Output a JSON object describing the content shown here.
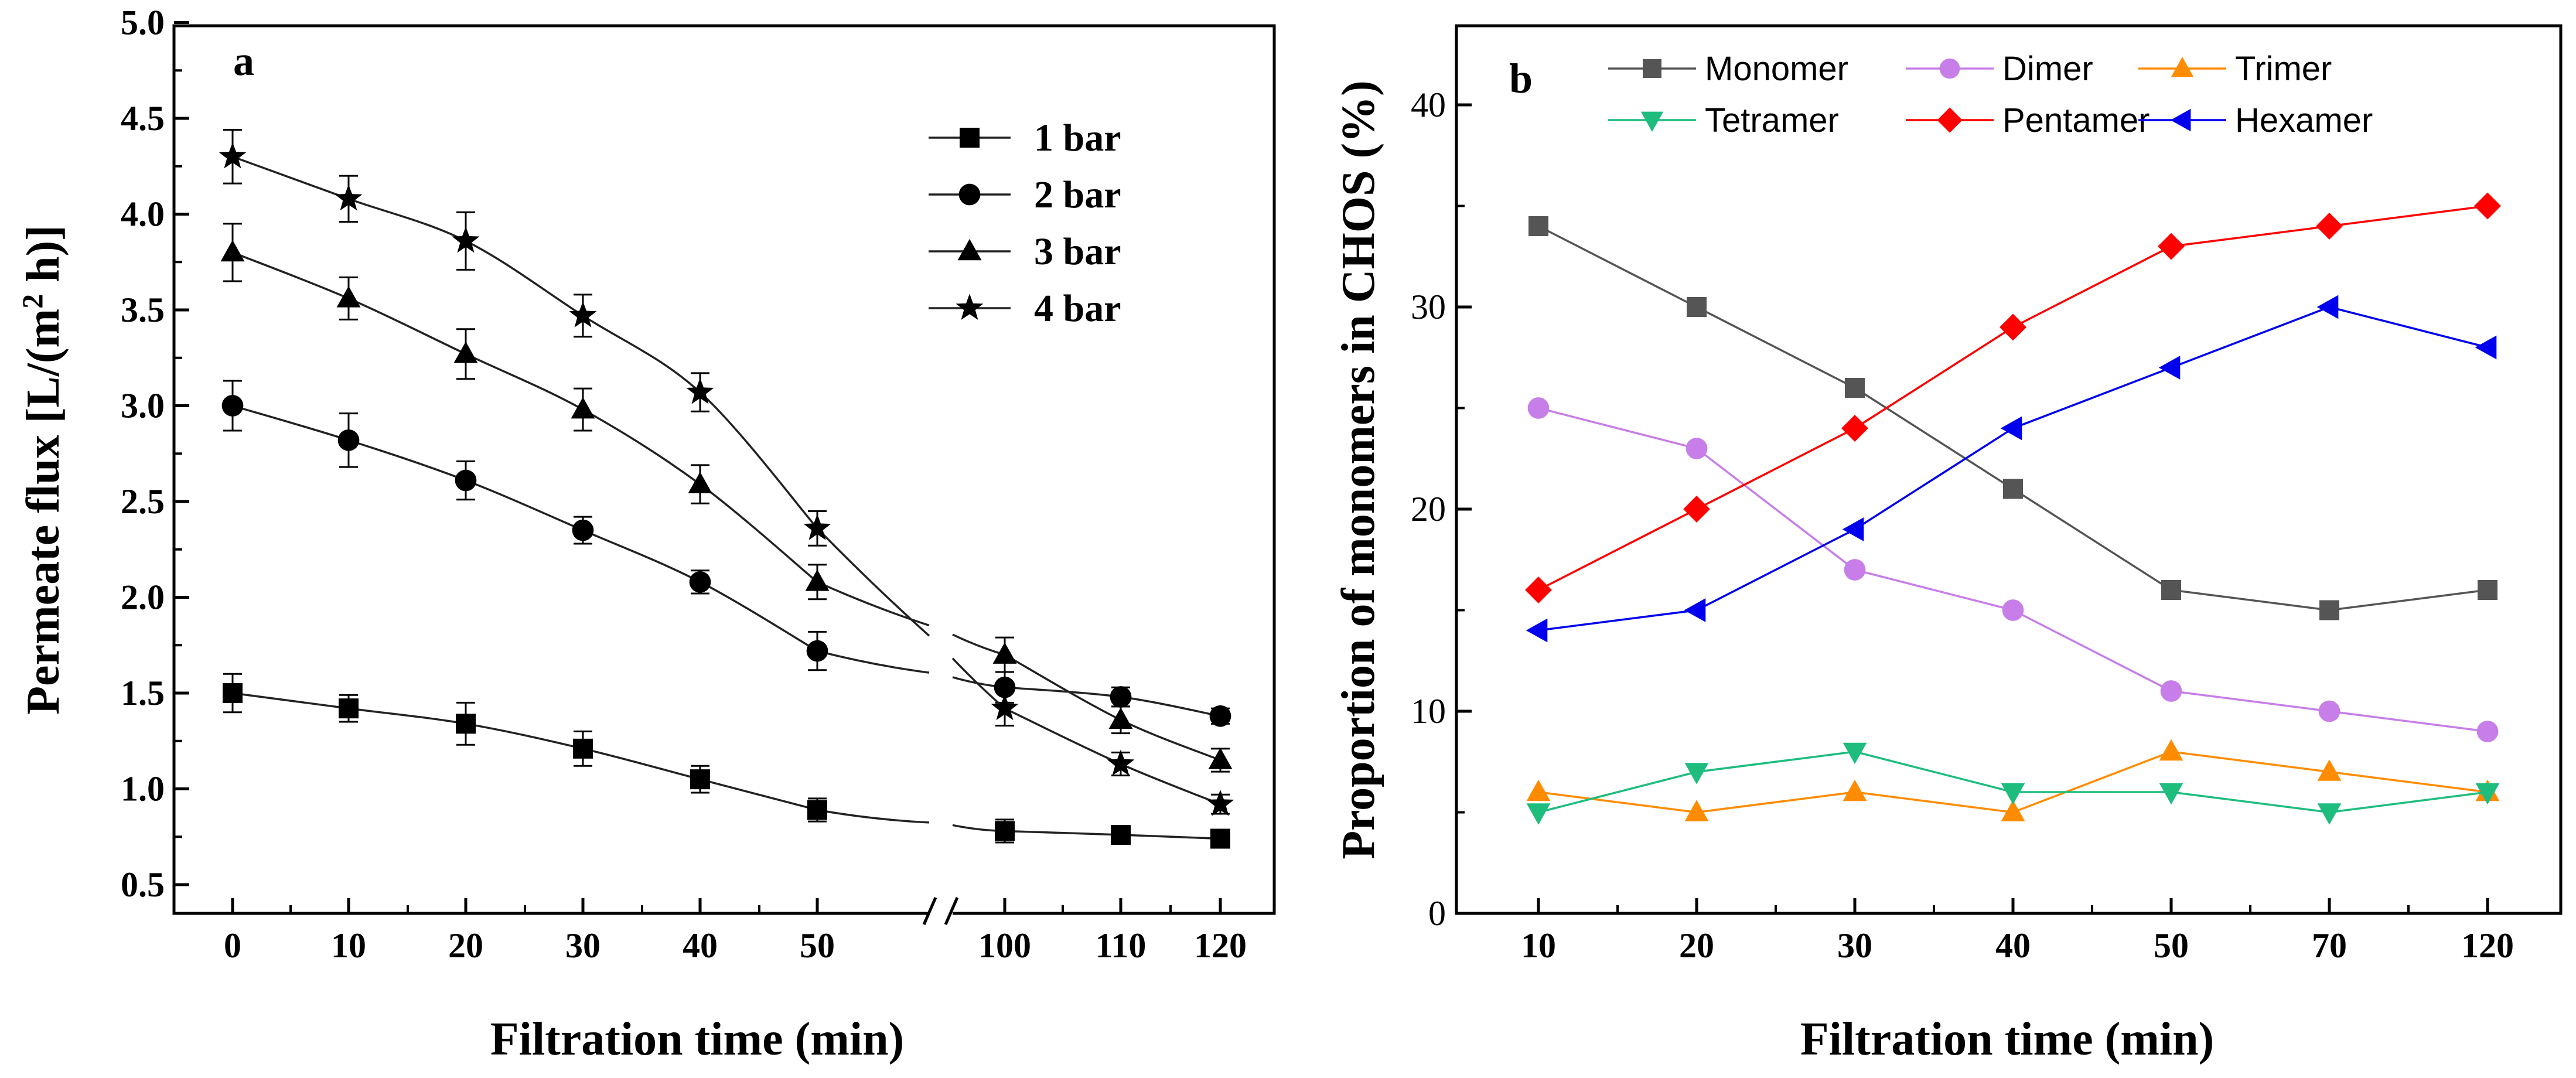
{
  "chart_data": [
    {
      "panel": "a",
      "type": "line",
      "xlabel": "Filtration time (min)",
      "ylabel_main": "Permeate flux [L/(m",
      "ylabel_sup": "2",
      "ylabel_end": " h)]",
      "ylim": [
        0.5,
        5.0
      ],
      "yticks": [
        "0.5",
        "1.0",
        "1.5",
        "2.0",
        "2.5",
        "3.0",
        "3.5",
        "4.0",
        "4.5",
        "5.0"
      ],
      "x": [
        "0",
        "10",
        "20",
        "30",
        "40",
        "50",
        "100",
        "110",
        "120"
      ],
      "axis_break": "between 50 and 100",
      "series": [
        {
          "name": "1 bar",
          "marker": "square",
          "values": [
            1.5,
            1.42,
            1.34,
            1.21,
            1.05,
            0.89,
            0.78,
            0.76,
            0.74
          ],
          "errors": [
            0.1,
            0.07,
            0.11,
            0.09,
            0.07,
            0.06,
            0.06,
            0.03,
            0.03
          ]
        },
        {
          "name": "2 bar",
          "marker": "circle",
          "values": [
            3.0,
            2.82,
            2.61,
            2.35,
            2.08,
            1.72,
            1.53,
            1.48,
            1.38
          ],
          "errors": [
            0.13,
            0.14,
            0.1,
            0.07,
            0.06,
            0.1,
            0.08,
            0.05,
            0.04
          ]
        },
        {
          "name": "3 bar",
          "marker": "triangle",
          "values": [
            3.8,
            3.56,
            3.27,
            2.98,
            2.59,
            2.08,
            1.7,
            1.36,
            1.15
          ],
          "errors": [
            0.15,
            0.11,
            0.13,
            0.11,
            0.1,
            0.09,
            0.09,
            0.07,
            0.06
          ]
        },
        {
          "name": "4 bar",
          "marker": "star",
          "values": [
            4.3,
            4.08,
            3.86,
            3.47,
            3.07,
            2.36,
            1.42,
            1.13,
            0.92
          ],
          "errors": [
            0.14,
            0.12,
            0.15,
            0.11,
            0.1,
            0.09,
            0.09,
            0.06,
            0.05
          ]
        }
      ]
    },
    {
      "panel": "b",
      "type": "line",
      "xlabel": "Filtration time (min)",
      "ylabel": "Proportion of monomers in CHOS (%)",
      "ylim": [
        0,
        44
      ],
      "yticks": [
        "0",
        "10",
        "20",
        "30",
        "40"
      ],
      "categories": [
        "10",
        "20",
        "30",
        "40",
        "50",
        "70",
        "120"
      ],
      "series": [
        {
          "name": "Monomer",
          "marker": "square",
          "color": "#555555",
          "values": [
            34,
            30,
            26,
            21,
            16,
            15,
            16
          ]
        },
        {
          "name": "Dimer",
          "marker": "circle",
          "color": "#c77ee8",
          "values": [
            25,
            23,
            17,
            15,
            11,
            10,
            9
          ]
        },
        {
          "name": "Trimer",
          "marker": "triangle",
          "color": "#ff8c00",
          "values": [
            6,
            5,
            6,
            5,
            8,
            7,
            6
          ]
        },
        {
          "name": "Tetramer",
          "marker": "triangle-down",
          "color": "#1ebd7e",
          "values": [
            5,
            7,
            8,
            6,
            6,
            5,
            6
          ]
        },
        {
          "name": "Pentamer",
          "marker": "diamond",
          "color": "#ff0000",
          "values": [
            16,
            20,
            24,
            29,
            33,
            34,
            35
          ]
        },
        {
          "name": "Hexamer",
          "marker": "triangle-left",
          "color": "#0000ee",
          "values": [
            14,
            15,
            19,
            24,
            27,
            30,
            28
          ]
        }
      ]
    }
  ]
}
